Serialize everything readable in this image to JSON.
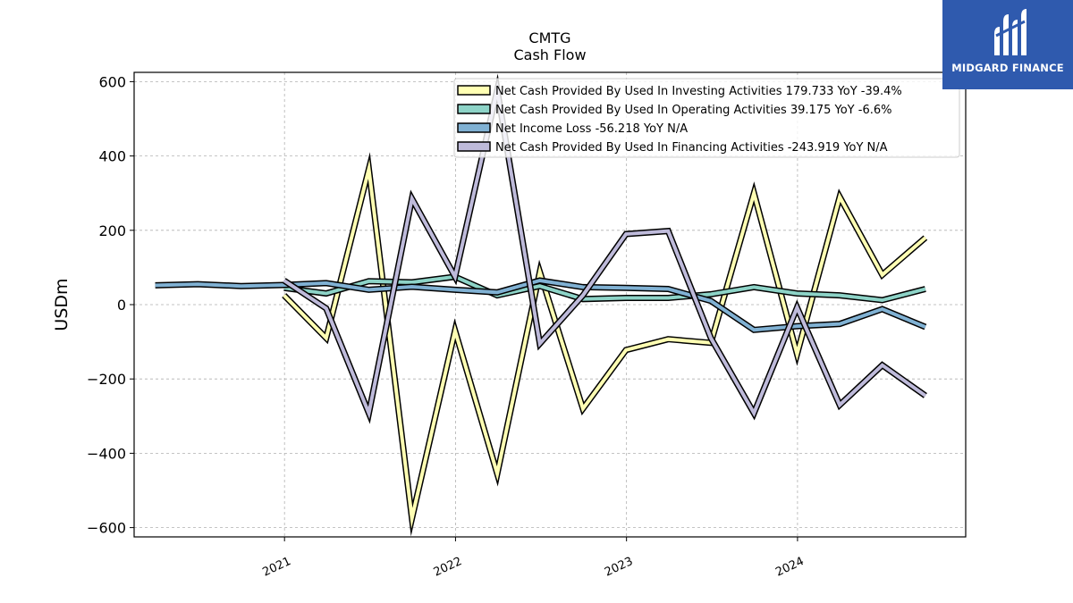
{
  "logo": {
    "text": "MIDGARD FINANCE",
    "icon": "midgard-logo-icon",
    "background": "#2f5aae"
  },
  "chart_data": {
    "type": "line",
    "title": "CMTG",
    "subtitle": "Cash Flow",
    "xlabel": "",
    "ylabel": "USDm",
    "ylim": [
      -625,
      625
    ],
    "xlim": [
      "2020-02-15",
      "2024-12-25"
    ],
    "yticks": [
      600,
      400,
      200,
      0,
      -200,
      -400,
      -600
    ],
    "ytick_labels": [
      "600",
      "400",
      "200",
      "0",
      "−200",
      "−400",
      "−600"
    ],
    "xticks": [
      "2021-01-01",
      "2022-01-01",
      "2023-01-01",
      "2024-01-01"
    ],
    "xtick_labels": [
      "2021",
      "2022",
      "2023",
      "2024"
    ],
    "grid": true,
    "legend_position": "top-right",
    "series": [
      {
        "name": "Net Cash Provided By Used In Investing Activities",
        "legend": "Net Cash Provided By Used In Investing Activities  179.733 YoY -39.4%",
        "color": "#ffffb3",
        "x": [
          "2020-12-31",
          "2021-03-31",
          "2021-06-30",
          "2021-09-30",
          "2021-12-31",
          "2022-03-31",
          "2022-06-30",
          "2022-09-30",
          "2022-12-31",
          "2023-03-31",
          "2023-06-30",
          "2023-09-30",
          "2023-12-31",
          "2024-03-31",
          "2024-06-30",
          "2024-09-30"
        ],
        "y": [
          25,
          -90,
          365,
          -575,
          -70,
          -455,
          88,
          -280,
          -122,
          -93,
          -103,
          300,
          -133,
          290,
          80,
          180
        ]
      },
      {
        "name": "Net Cash Provided By Used In Operating Activities",
        "legend": "Net Cash Provided By Used In Operating Activities  39.175 YoY -6.6%",
        "color": "#8dd3c7",
        "x": [
          "2020-12-31",
          "2021-03-31",
          "2021-06-30",
          "2021-09-30",
          "2021-12-31",
          "2022-03-31",
          "2022-06-30",
          "2022-09-30",
          "2022-12-31",
          "2023-03-31",
          "2023-06-30",
          "2023-09-30",
          "2023-12-31",
          "2024-03-31",
          "2024-06-30",
          "2024-09-30"
        ],
        "y": [
          45,
          30,
          63,
          60,
          75,
          25,
          50,
          15,
          18,
          18,
          28,
          47,
          30,
          25,
          12,
          42
        ]
      },
      {
        "name": "Net Income Loss",
        "legend": "Net Income Loss  -56.218 YoY N/A",
        "color": "#80b1d3",
        "x": [
          "2020-03-31",
          "2020-06-30",
          "2020-09-30",
          "2020-12-31",
          "2021-03-31",
          "2021-06-30",
          "2021-09-30",
          "2021-12-31",
          "2022-03-31",
          "2022-06-30",
          "2022-09-30",
          "2022-12-31",
          "2023-03-31",
          "2023-06-30",
          "2023-09-30",
          "2023-12-31",
          "2024-03-31",
          "2024-06-30",
          "2024-09-30"
        ],
        "y": [
          52,
          55,
          50,
          53,
          58,
          40,
          48,
          40,
          33,
          65,
          47,
          45,
          42,
          10,
          -68,
          -58,
          -52,
          -12,
          -60
        ]
      },
      {
        "name": "Net Cash Provided By Used In Financing Activities",
        "legend": "Net Cash Provided By Used In Financing Activities  -243.919 YoY N/A",
        "color": "#bebada",
        "x": [
          "2020-12-31",
          "2021-03-31",
          "2021-06-30",
          "2021-09-30",
          "2021-12-31",
          "2022-03-31",
          "2022-06-30",
          "2022-09-30",
          "2022-12-31",
          "2023-03-31",
          "2023-06-30",
          "2023-09-30",
          "2023-12-31",
          "2024-03-31",
          "2024-06-30",
          "2024-09-30"
        ],
        "y": [
          65,
          -10,
          -292,
          285,
          75,
          578,
          -105,
          25,
          190,
          198,
          -90,
          -292,
          -8,
          -270,
          -163,
          -245
        ]
      }
    ]
  }
}
